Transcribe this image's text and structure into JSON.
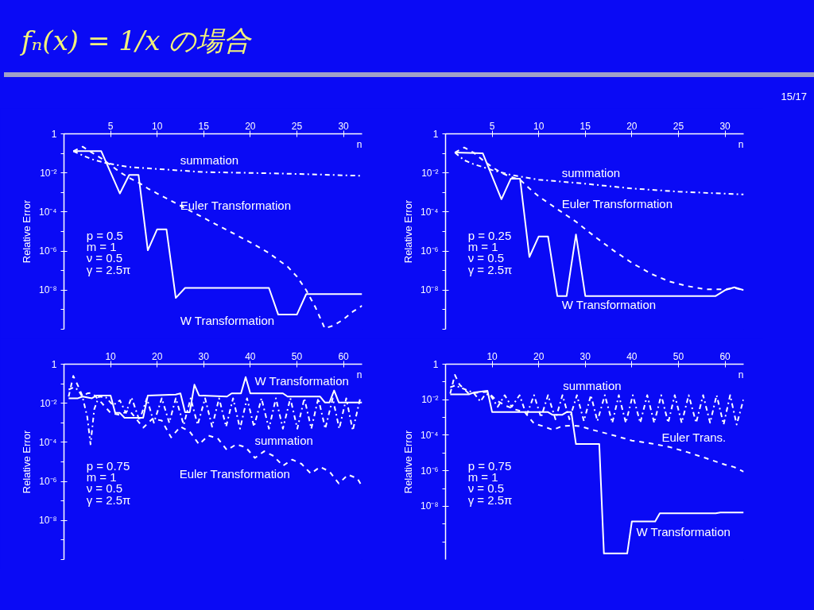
{
  "chart_data": [
    {
      "type": "line",
      "title": "fₙ(x) = 1/x の場合",
      "ylabel": "Relative Error",
      "xlabel": "n",
      "log": "y",
      "xlim": [
        0,
        32
      ],
      "ylim": [
        1e-10,
        1
      ],
      "xticks": [
        5,
        10,
        15,
        20,
        25,
        30
      ],
      "yticks": [
        {
          "value": 1,
          "label": "1"
        },
        {
          "value": 0.1,
          "label": null
        },
        {
          "value": 0.01,
          "label": "10⁻²"
        },
        {
          "value": 0.001,
          "label": null
        },
        {
          "value": 0.0001,
          "label": "10⁻⁴"
        },
        {
          "value": 1e-05,
          "label": null
        },
        {
          "value": 1e-06,
          "label": "10⁻⁶"
        },
        {
          "value": 1e-07,
          "label": null
        },
        {
          "value": 1e-08,
          "label": "10⁻⁸"
        },
        {
          "value": 1e-09,
          "label": null
        },
        {
          "value": 1e-10,
          "label": null
        }
      ],
      "series": [
        {
          "x": [
            1,
            2,
            3,
            4.5,
            7,
            10,
            15,
            20,
            25,
            32
          ],
          "values": [
            0.13,
            0.079,
            0.05,
            0.032,
            0.02,
            0.016,
            0.011,
            0.01,
            0.0089,
            0.0071
          ],
          "color": "#ffffff",
          "line_style": "dashdot",
          "name": "summation"
        },
        {
          "x": [
            1,
            2,
            3,
            4,
            5,
            6,
            7,
            8,
            9,
            10,
            12,
            14,
            16,
            18,
            20,
            22,
            24,
            25,
            26,
            27,
            28,
            29,
            30,
            31,
            32
          ],
          "values": [
            0.13,
            0.22,
            0.11,
            0.056,
            0.025,
            0.011,
            0.0056,
            0.0032,
            0.0016,
            0.00089,
            0.00028,
            8.9e-05,
            2.8e-05,
            8.9e-06,
            2.8e-06,
            7.9e-07,
            1.6e-07,
            5e-08,
            1e-08,
            1.3e-09,
            1.1e-10,
            1.6e-10,
            3.2e-10,
            7.9e-10,
            1.6e-09
          ],
          "color": "#ffffff",
          "line_style": "dashed",
          "name": "Euler Transformation"
        },
        {
          "x": [
            1,
            4,
            6,
            7,
            8,
            9,
            10,
            11,
            12,
            13,
            22,
            23,
            25,
            26,
            32
          ],
          "values": [
            0.13,
            0.13,
            0.00089,
            0.0079,
            0.0079,
            1.1e-06,
            1.3e-05,
            1.3e-05,
            4e-09,
            1.3e-08,
            1.3e-08,
            5.6e-10,
            5.6e-10,
            6.3e-09,
            6.3e-09
          ],
          "color": "#ffffff",
          "line_style": "solid",
          "name": "W Transformation"
        }
      ],
      "annotations": [
        "p = 0.5",
        "m = 1",
        "ν = 0.5",
        "γ = 2.5π",
        "15/17"
      ]
    },
    {
      "type": "line",
      "ylabel": "Relative Error",
      "xlabel": "n",
      "log": "y",
      "xlim": [
        0,
        32
      ],
      "ylim": [
        1e-10,
        1
      ],
      "xticks": [
        5,
        10,
        15,
        20,
        25,
        30
      ],
      "yticks": [
        {
          "value": 1,
          "label": "1"
        },
        {
          "value": 0.1,
          "label": null
        },
        {
          "value": 0.01,
          "label": "10⁻²"
        },
        {
          "value": 0.001,
          "label": null
        },
        {
          "value": 0.0001,
          "label": "10⁻⁴"
        },
        {
          "value": 1e-05,
          "label": null
        },
        {
          "value": 1e-06,
          "label": "10⁻⁶"
        },
        {
          "value": 1e-07,
          "label": null
        },
        {
          "value": 1e-08,
          "label": "10⁻⁸"
        },
        {
          "value": 1e-09,
          "label": null
        },
        {
          "value": 1e-10,
          "label": null
        }
      ],
      "series": [
        {
          "x": [
            1,
            2,
            3,
            4,
            5,
            7,
            10,
            15,
            20,
            25,
            32
          ],
          "values": [
            0.11,
            0.045,
            0.028,
            0.02,
            0.014,
            0.0079,
            0.0045,
            0.0028,
            0.0016,
            0.0011,
            0.00079
          ],
          "color": "#ffffff",
          "line_style": "dashdot",
          "name": "summation"
        },
        {
          "x": [
            1,
            2,
            3,
            4,
            5,
            6,
            7,
            8,
            9,
            10,
            12,
            14,
            16,
            18,
            20,
            22,
            24,
            26,
            28,
            30,
            31,
            32
          ],
          "values": [
            0.11,
            0.2,
            0.11,
            0.045,
            0.02,
            0.01,
            0.0063,
            0.0045,
            0.0016,
            0.00063,
            0.00014,
            3.2e-05,
            5.6e-06,
            1.1e-06,
            2.5e-07,
            7.1e-08,
            2.8e-08,
            1.6e-08,
            1.1e-08,
            1.1e-08,
            1.3e-08,
            1e-08
          ],
          "color": "#ffffff",
          "line_style": "dashed",
          "name": "Euler Transformation"
        },
        {
          "x": [
            1,
            4,
            6,
            7,
            8,
            9,
            10,
            11,
            12,
            13,
            14,
            15,
            29,
            30,
            31,
            32
          ],
          "values": [
            0.11,
            0.1,
            0.00045,
            0.005,
            0.005,
            5e-07,
            5.6e-06,
            5.6e-06,
            5e-09,
            5e-09,
            7.1e-06,
            5e-09,
            5e-09,
            1e-08,
            1.4e-08,
            1e-08
          ],
          "color": "#ffffff",
          "line_style": "solid",
          "name": "W Transformation"
        }
      ],
      "annotations": [
        "p = 0.25",
        "m = 1",
        "ν = 0.5",
        "γ = 2.5π"
      ]
    },
    {
      "type": "line",
      "ylabel": "Relative Error",
      "xlabel": "n",
      "log": "y",
      "xlim": [
        0,
        64
      ],
      "ylim": [
        1e-10,
        1
      ],
      "xticks": [
        10,
        20,
        30,
        40,
        50,
        60
      ],
      "yticks": [
        {
          "value": 1,
          "label": "1"
        },
        {
          "value": 0.1,
          "label": null
        },
        {
          "value": 0.01,
          "label": "10⁻²"
        },
        {
          "value": 0.001,
          "label": null
        },
        {
          "value": 0.0001,
          "label": "10⁻⁴"
        },
        {
          "value": 1e-05,
          "label": null
        },
        {
          "value": 1e-06,
          "label": "10⁻⁶"
        },
        {
          "value": 1e-07,
          "label": null
        },
        {
          "value": 1e-08,
          "label": "10⁻⁸"
        },
        {
          "value": 1e-09,
          "label": null
        },
        {
          "value": 1e-10,
          "label": null
        }
      ],
      "series": [
        {
          "x": [
            1,
            2,
            3,
            4,
            5,
            5.7,
            6.5,
            7.5,
            9,
            10.5,
            12,
            13.3,
            14.5,
            16.2,
            17.8,
            19.3,
            21,
            22.6,
            24,
            25.7,
            27.2,
            28.7,
            30.3,
            31.8,
            33.3,
            34.8,
            36.3,
            37.8,
            39.3,
            40.8,
            42.4,
            44,
            45.5,
            47,
            48.6,
            50.1,
            51.6,
            53.1,
            54.6,
            56.1,
            57.7,
            59.1,
            60.6,
            62,
            63.6
          ],
          "values": [
            0.05,
            0.063,
            0.05,
            0.02,
            0.002,
            7.9e-05,
            0.005,
            0.022,
            0.02,
            0.0079,
            0.014,
            0.0032,
            0.02,
            0.0013,
            0.018,
            0.001,
            0.018,
            0.001,
            0.018,
            0.00079,
            0.018,
            0.00079,
            0.018,
            0.00063,
            0.018,
            0.00063,
            0.018,
            0.0005,
            0.018,
            0.00063,
            0.018,
            0.0005,
            0.018,
            0.0005,
            0.018,
            0.0005,
            0.018,
            0.0005,
            0.018,
            0.0005,
            0.018,
            0.0005,
            0.018,
            0.0004,
            0.018
          ],
          "color": "#ffffff",
          "line_style": "dashdot",
          "name": "summation"
        },
        {
          "x": [
            1,
            2,
            3,
            4,
            5,
            6,
            8,
            10,
            12,
            14,
            17,
            19,
            21,
            23,
            25,
            27,
            29,
            31,
            33,
            35,
            37,
            39,
            41,
            43,
            45,
            47,
            49,
            51,
            53,
            55,
            57,
            59,
            61,
            63,
            64
          ],
          "values": [
            0.022,
            0.25,
            0.079,
            0.022,
            0.032,
            0.035,
            0.011,
            0.0032,
            0.0025,
            0.0045,
            0.00056,
            0.0016,
            0.0013,
            0.00018,
            0.00063,
            0.00035,
            7.9e-05,
            0.00022,
            0.00016,
            4e-05,
            7.9e-05,
            5.6e-05,
            1.6e-05,
            3.5e-05,
            2e-05,
            6.3e-06,
            1.3e-05,
            7.9e-06,
            2.5e-06,
            5.6e-06,
            3.2e-06,
            7.9e-07,
            2.2e-06,
            1.4e-06,
            5.6e-07
          ],
          "color": "#ffffff",
          "line_style": "dashed",
          "name": "Euler Transformation"
        },
        {
          "x": [
            1,
            3,
            4,
            6,
            7,
            10,
            11,
            12,
            13,
            17,
            18,
            24,
            25,
            26,
            27,
            28,
            29,
            35,
            36,
            38,
            39,
            40,
            47,
            48,
            55,
            56,
            57,
            58,
            59,
            64
          ],
          "values": [
            0.018,
            0.018,
            0.022,
            0.018,
            0.025,
            0.025,
            0.0032,
            0.0032,
            0.0018,
            0.0018,
            0.025,
            0.028,
            0.032,
            0.0035,
            0.0035,
            0.089,
            0.025,
            0.022,
            0.032,
            0.032,
            0.22,
            0.032,
            0.032,
            0.022,
            0.022,
            0.011,
            0.011,
            0.045,
            0.011,
            0.011
          ],
          "color": "#ffffff",
          "line_style": "solid",
          "name": "W Transformation"
        }
      ],
      "annotations": [
        "p = 0.75",
        "m = 1",
        "ν = 0.5",
        "γ = 2.5π"
      ]
    },
    {
      "type": "line",
      "ylabel": "Relative Error",
      "xlabel": "n",
      "log": "y",
      "xlim": [
        0,
        64
      ],
      "ylim": [
        1e-11,
        1
      ],
      "xticks": [
        10,
        20,
        30,
        40,
        50,
        60
      ],
      "yticks": [
        {
          "value": 1,
          "label": "1"
        },
        {
          "value": 0.1,
          "label": null
        },
        {
          "value": 0.01,
          "label": "10⁻²"
        },
        {
          "value": 0.001,
          "label": null
        },
        {
          "value": 0.0001,
          "label": "10⁻⁴"
        },
        {
          "value": 1e-05,
          "label": null
        },
        {
          "value": 1e-06,
          "label": "10⁻⁶"
        },
        {
          "value": 1e-07,
          "label": null
        },
        {
          "value": 1e-08,
          "label": "10⁻⁸"
        },
        {
          "value": 1e-09,
          "label": null
        },
        {
          "value": 1e-10,
          "label": null
        }
      ],
      "series": [
        {
          "x": [
            1,
            2,
            4,
            6,
            7.5,
            8.5,
            9.5,
            11.2,
            12.7,
            14.2,
            15.9,
            17.4,
            19,
            20.5,
            22,
            23.6,
            25.1,
            26.6,
            28.2,
            29.7,
            31.2,
            32.6,
            34.2,
            35.8,
            37.2,
            38.7,
            40.2,
            41.8,
            43.3,
            44.8,
            46.3,
            47.8,
            49.2,
            50.7,
            52.2,
            53.8,
            55.3,
            56.8,
            58.2,
            59.7,
            61.1,
            62.5,
            64
          ],
          "values": [
            0.05,
            0.063,
            0.04,
            0.025,
            0.0079,
            0.02,
            0.02,
            0.004,
            0.018,
            0.004,
            0.018,
            0.0013,
            0.018,
            0.001,
            0.018,
            0.00079,
            0.018,
            0.00079,
            0.018,
            0.00063,
            0.018,
            0.00063,
            0.018,
            0.0005,
            0.018,
            0.0005,
            0.018,
            0.0005,
            0.018,
            0.0005,
            0.018,
            0.0005,
            0.018,
            0.0005,
            0.018,
            0.0005,
            0.018,
            0.0005,
            0.018,
            0.0004,
            0.018,
            0.0004,
            0.011
          ],
          "color": "#ffffff",
          "line_style": "dashdot",
          "name": "summation"
        },
        {
          "x": [
            1,
            2,
            3,
            5,
            7,
            9,
            11,
            13,
            15,
            17,
            19,
            21,
            23,
            25,
            27,
            29,
            31,
            33,
            36,
            40,
            44,
            48,
            52,
            56,
            60,
            62,
            64
          ],
          "values": [
            0.022,
            0.25,
            0.071,
            0.022,
            0.025,
            0.028,
            0.0089,
            0.0045,
            0.0028,
            0.002,
            0.00045,
            0.00032,
            0.0002,
            0.00032,
            0.00035,
            0.00032,
            0.00022,
            0.00016,
            0.0001,
            5e-05,
            3.5e-05,
            2.2e-05,
            1.1e-05,
            5e-06,
            2.2e-06,
            1.6e-06,
            8.9e-07
          ],
          "color": "#ffffff",
          "line_style": "dashed",
          "name": "Euler Trans."
        },
        {
          "x": [
            1,
            5,
            6,
            9,
            10,
            22,
            23,
            25,
            26,
            27,
            28,
            33,
            34,
            39,
            40,
            45,
            46,
            58,
            59,
            64
          ],
          "values": [
            0.02,
            0.02,
            0.025,
            0.032,
            0.002,
            0.002,
            0.0014,
            0.0014,
            0.002,
            0.002,
            3.2e-05,
            3.2e-05,
            2.2e-11,
            2.2e-11,
            1.4e-09,
            1.4e-09,
            4e-09,
            4e-09,
            4.5e-09,
            4.5e-09
          ],
          "color": "#ffffff",
          "line_style": "solid",
          "name": "W Transformation"
        }
      ],
      "annotations": [
        "p = 0.75",
        "m = 1",
        "ν = 0.5",
        "γ = 2.5π"
      ]
    }
  ]
}
